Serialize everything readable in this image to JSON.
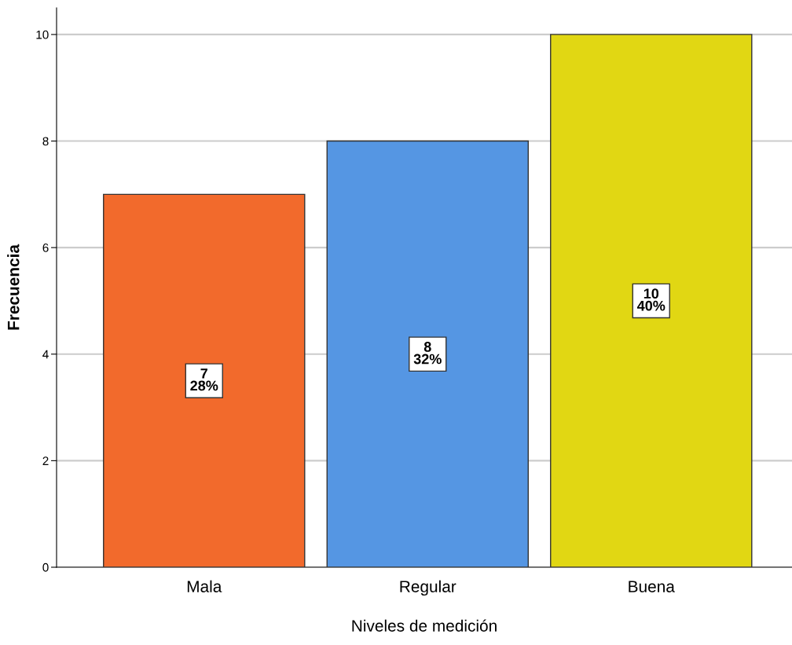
{
  "chart_data": {
    "type": "bar",
    "xlabel": "Niveles de medición",
    "ylabel": "Frecuencia",
    "categories": [
      "Mala",
      "Regular",
      "Buena"
    ],
    "values": [
      7,
      8,
      10
    ],
    "colors": [
      "#f26a2c",
      "#5596e3",
      "#e1d713"
    ],
    "value_labels": [
      "7\n28%",
      "8\n32%",
      "10\n40%"
    ],
    "ylim": [
      0,
      10.5
    ],
    "yticks": [
      0,
      2,
      4,
      6,
      8,
      10
    ],
    "grid": "y",
    "legend": false
  }
}
